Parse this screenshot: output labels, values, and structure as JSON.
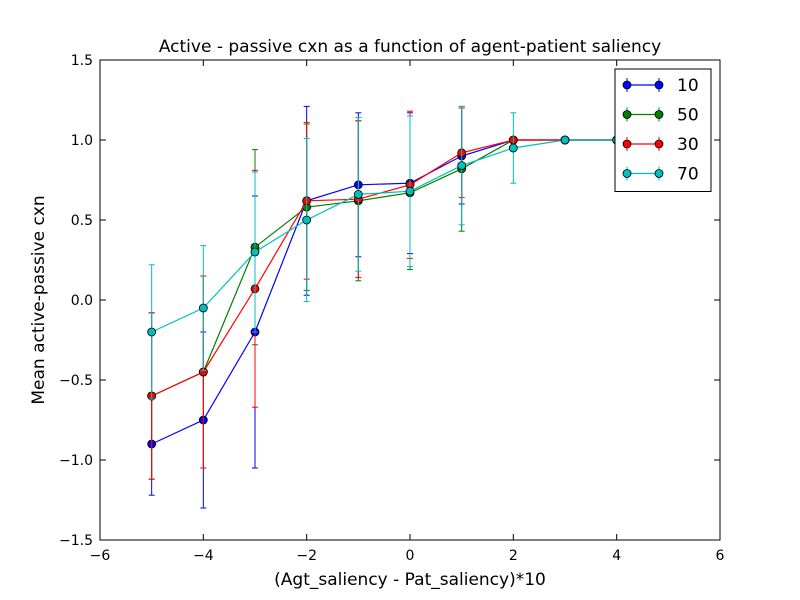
{
  "chart_data": {
    "type": "line",
    "title": "Active - passive cxn as a function of agent-patient saliency",
    "xlabel": "(Agt_saliency - Pat_saliency)*10",
    "ylabel": "Mean active-passive cxn",
    "xlim": [
      -6,
      6
    ],
    "ylim": [
      -1.5,
      1.5
    ],
    "xticks": [
      -6,
      -4,
      -2,
      0,
      2,
      4,
      6
    ],
    "yticks": [
      -1.5,
      -1.0,
      -0.5,
      0.0,
      0.5,
      1.0,
      1.5
    ],
    "xtick_labels": [
      "−6",
      "−4",
      "−2",
      "0",
      "2",
      "4",
      "6"
    ],
    "ytick_labels": [
      "−1.5",
      "−1.0",
      "−0.5",
      "0.0",
      "0.5",
      "1.0",
      "1.5"
    ],
    "grid": false,
    "legend_position": "top-right",
    "x": [
      -5,
      -4,
      -3,
      -2,
      -1,
      0,
      1,
      2,
      3,
      4
    ],
    "series": [
      {
        "name": "10",
        "color": "#0000ff",
        "values": [
          -0.9,
          -0.75,
          -0.2,
          0.62,
          0.72,
          0.73,
          0.9,
          1.0,
          1.0,
          1.0
        ],
        "errors": [
          0.32,
          0.55,
          0.85,
          0.59,
          0.45,
          0.44,
          0.3,
          0.0,
          0.0,
          0.0
        ]
      },
      {
        "name": "50",
        "color": "#008000",
        "values": [
          -0.6,
          -0.45,
          0.33,
          0.58,
          0.62,
          0.67,
          0.82,
          1.0,
          1.0,
          1.0
        ],
        "errors": [
          0.52,
          0.6,
          0.61,
          0.52,
          0.5,
          0.48,
          0.39,
          0.0,
          0.0,
          0.0
        ]
      },
      {
        "name": "30",
        "color": "#ff0000",
        "values": [
          -0.6,
          -0.45,
          0.07,
          0.62,
          0.63,
          0.72,
          0.92,
          1.0,
          1.0,
          1.0
        ],
        "errors": [
          0.52,
          0.6,
          0.74,
          0.49,
          0.49,
          0.46,
          0.28,
          0.0,
          0.0,
          0.0
        ]
      },
      {
        "name": "70",
        "color": "#00bfbf",
        "values": [
          -0.2,
          -0.05,
          0.3,
          0.5,
          0.66,
          0.68,
          0.84,
          0.95,
          1.0,
          1.0
        ],
        "errors": [
          0.42,
          0.39,
          0.5,
          0.51,
          0.48,
          0.47,
          0.37,
          0.22,
          0.0,
          0.0
        ]
      }
    ]
  }
}
